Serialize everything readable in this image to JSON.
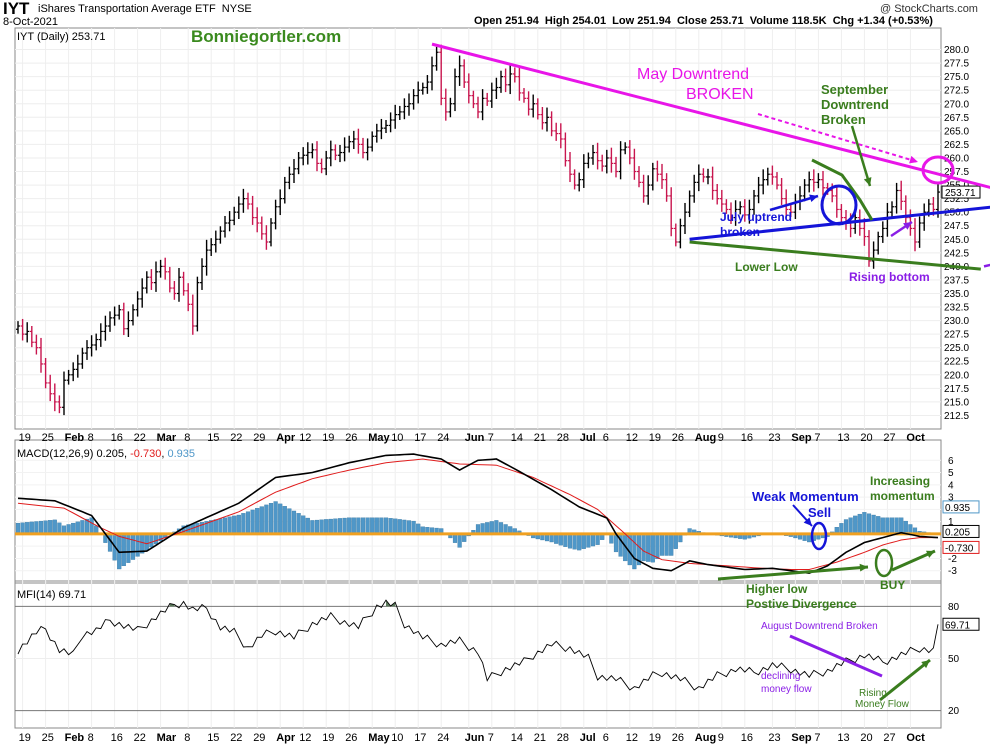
{
  "header": {
    "symbol": "IYT",
    "name": "iShares Transportation Average ETF",
    "exchange": "NYSE",
    "date": "8-Oct-2021",
    "ohlc": "Open 251.94  High 254.01  Low 251.94  Close 253.71  Volume 118.5K  Chg +1.34 (+0.53%)",
    "credit": "@ StockCharts.com",
    "watermark": "Bonniegortler.com"
  },
  "panel_labels": {
    "price": "IYT (Daily) 253.71",
    "macd_prefix": "MACD(12,26,9) 0.205, ",
    "macd_sig": "-0.730",
    "macd_sep": ", ",
    "macd_hist": "0.935",
    "mfi": "MFI(14) 69.71"
  },
  "annotations": {
    "may_line1": "May Downtrend",
    "may_line2": "BROKEN",
    "sept_line1": "September",
    "sept_line2": "Downtrend",
    "sept_line3": "Broken",
    "july_line1": "July uptrend",
    "july_line2": "broken",
    "lower_low": "Lower Low",
    "rising_bottom": "Rising bottom",
    "weak_line1": "Weak Momentum",
    "weak_line2": "Sell",
    "inc_line1": "Increasing",
    "inc_line2": "momentum",
    "higher_line1": "Higher low",
    "higher_line2": "Postive Divergence",
    "buy": "BUY",
    "aug_dt": "August Downtrend Broken",
    "decl_line1": "declining",
    "decl_line2": "money flow",
    "rising_line1": "Rising",
    "rising_line2": "Money Flow"
  },
  "colors": {
    "up_bar": "#000000",
    "down_bar": "#c8154e",
    "magenta": "#e815e8",
    "blue": "#1414d8",
    "green": "#3a7d1e",
    "purple": "#8a1ee6",
    "macd_line": "#000000",
    "signal_line": "#e01c1c",
    "histogram": "#4f97c8",
    "zero_line": "#f0a020",
    "mfi_fill": "#5a7a5a"
  },
  "chart_data": [
    {
      "type": "ohlc",
      "panel": "price",
      "ylim": [
        210,
        282.5
      ],
      "y_ticks": [
        212.5,
        215,
        217.5,
        220,
        222.5,
        225,
        227.5,
        230,
        232.5,
        235,
        237.5,
        240,
        242.5,
        245,
        247.5,
        250,
        252.5,
        255,
        257.5,
        260,
        262.5,
        265,
        267.5,
        270,
        272.5,
        275,
        277.5,
        280
      ],
      "x_tick_labels": [
        "19",
        "25",
        "Feb",
        "8",
        "16",
        "22",
        "Mar",
        "8",
        "15",
        "22",
        "29",
        "Apr",
        "12",
        "19",
        "26",
        "May",
        "10",
        "17",
        "24",
        "Jun",
        "7",
        "14",
        "21",
        "28",
        "Jul",
        "6",
        "12",
        "19",
        "26",
        "Aug",
        "9",
        "16",
        "23",
        "Sep",
        "7",
        "13",
        "20",
        "27",
        "Oct"
      ],
      "last_value": 253.71,
      "trendlines": [
        {
          "name": "May downtrend",
          "from": [
            "May 10",
            281
          ],
          "to": [
            "Oct 8",
            250
          ]
        },
        {
          "name": "July uptrend",
          "from": [
            "Jul 19",
            245
          ],
          "to": [
            "Oct 8",
            252.8
          ]
        },
        {
          "name": "Lower low",
          "from": [
            "Jul 19",
            244.5
          ],
          "to": [
            "Sep 17",
            239.5
          ]
        },
        {
          "name": "Rising bottom",
          "from": [
            "Sep 20",
            240
          ],
          "to": [
            "Oct 4",
            243.5
          ]
        }
      ],
      "closes": [
        229,
        227.5,
        228,
        226,
        225,
        222,
        218.5,
        216.5,
        215,
        214,
        219,
        220,
        221,
        222,
        224,
        225,
        225.5,
        226.5,
        228,
        229,
        230.5,
        231,
        232,
        228.5,
        230,
        232,
        234,
        236,
        238,
        237,
        239,
        240,
        239,
        236,
        235,
        238,
        235.5,
        233,
        229,
        237,
        240,
        243,
        244,
        245,
        246.5,
        248,
        248.5,
        250,
        251.5,
        252.5,
        251.5,
        249,
        248,
        246,
        244.5,
        248,
        251,
        252.5,
        255.5,
        257,
        258,
        260,
        260.5,
        261,
        261.5,
        259,
        258,
        260,
        261.5,
        260.5,
        261,
        262,
        263,
        263.5,
        262.5,
        261,
        262,
        264,
        265,
        265.5,
        266,
        267,
        268,
        268.5,
        269.5,
        270,
        271.5,
        272.5,
        273,
        274,
        277,
        279.5,
        271,
        268.5,
        270,
        275,
        277,
        274,
        271.5,
        270,
        268.5,
        271,
        270.5,
        272.5,
        273,
        275,
        273.5,
        275.5,
        275,
        272,
        271,
        269,
        270,
        268,
        266.5,
        267.5,
        265,
        264.5,
        263.5,
        259.5,
        257,
        255,
        256,
        259,
        260,
        261,
        259.5,
        258.5,
        260,
        259,
        257.5,
        261.5,
        262,
        260,
        257.5,
        255.5,
        253,
        255,
        258,
        257,
        256,
        253,
        247,
        244.5,
        247.5,
        250,
        253,
        255.5,
        257,
        256.5,
        256.5,
        254,
        252.5,
        251.5,
        250.5,
        249,
        250.5,
        251,
        249.5,
        250.5,
        253,
        255,
        256,
        257,
        256.5,
        255,
        252.5,
        250.5,
        250,
        252,
        253,
        255,
        256,
        255.5,
        256,
        254.5,
        254,
        253,
        250.5,
        249,
        248,
        247,
        249,
        247,
        245.5,
        241,
        243,
        245.5,
        247,
        250,
        251,
        254,
        252,
        249,
        247,
        244.5,
        248,
        250,
        251.5,
        250.5,
        253.71
      ]
    },
    {
      "type": "line",
      "panel": "macd",
      "ylim": [
        -4,
        7
      ],
      "y_ticks": [
        -3,
        -2,
        -1,
        0,
        1,
        2,
        3,
        4,
        5,
        6
      ],
      "series": [
        {
          "name": "MACD(12,26,9)",
          "last": 0.205
        },
        {
          "name": "signal",
          "last": -0.73
        },
        {
          "name": "histogram",
          "last": 0.935
        }
      ],
      "macd_keys": [
        [
          0,
          2.9
        ],
        [
          8,
          2.7
        ],
        [
          16,
          1.5
        ],
        [
          22,
          -1.5
        ],
        [
          28,
          -1.4
        ],
        [
          36,
          0.5
        ],
        [
          48,
          2.5
        ],
        [
          56,
          4.6
        ],
        [
          64,
          5
        ],
        [
          72,
          5.8
        ],
        [
          80,
          6.4
        ],
        [
          86,
          6.5
        ],
        [
          92,
          6.1
        ],
        [
          96,
          5.2
        ],
        [
          100,
          6
        ],
        [
          104,
          6.1
        ],
        [
          108,
          5.3
        ],
        [
          116,
          3.6
        ],
        [
          122,
          2.2
        ],
        [
          128,
          1.3
        ],
        [
          130,
          0
        ],
        [
          134,
          -2
        ],
        [
          138,
          -2.8
        ],
        [
          142,
          -3
        ],
        [
          146,
          -2.2
        ],
        [
          150,
          -2.5
        ],
        [
          158,
          -2.9
        ],
        [
          164,
          -2.8
        ],
        [
          172,
          -3.2
        ],
        [
          176,
          -2.6
        ],
        [
          180,
          -1.5
        ],
        [
          184,
          -0.7
        ],
        [
          188,
          -0.3
        ],
        [
          192,
          0.1
        ],
        [
          196,
          -0.2
        ],
        [
          200,
          -0.3
        ],
        [
          204,
          -1.4
        ],
        [
          208,
          -2.2
        ],
        [
          212,
          -3
        ],
        [
          216,
          -2.6
        ],
        [
          220,
          -2.2
        ],
        [
          224,
          -1.8
        ],
        [
          228,
          -1.2
        ],
        [
          231,
          0.205
        ]
      ],
      "signal_keys": [
        [
          0,
          2.5
        ],
        [
          10,
          2.1
        ],
        [
          18,
          0.5
        ],
        [
          22,
          -0.2
        ],
        [
          28,
          -0.8
        ],
        [
          36,
          0.2
        ],
        [
          48,
          1.8
        ],
        [
          56,
          3.4
        ],
        [
          64,
          4.5
        ],
        [
          72,
          5.2
        ],
        [
          80,
          5.8
        ],
        [
          88,
          6.1
        ],
        [
          96,
          5.7
        ],
        [
          104,
          5.6
        ],
        [
          112,
          4.6
        ],
        [
          120,
          3.2
        ],
        [
          126,
          2
        ],
        [
          132,
          0
        ],
        [
          136,
          -1.4
        ],
        [
          140,
          -2.1
        ],
        [
          146,
          -2.4
        ],
        [
          154,
          -2.6
        ],
        [
          162,
          -2.8
        ],
        [
          168,
          -2.9
        ],
        [
          172,
          -2.9
        ],
        [
          178,
          -2.3
        ],
        [
          184,
          -1.5
        ],
        [
          188,
          -0.9
        ],
        [
          192,
          -0.5
        ],
        [
          196,
          -0.3
        ],
        [
          200,
          -0.3
        ],
        [
          204,
          -0.8
        ],
        [
          208,
          -1.3
        ],
        [
          212,
          -1.9
        ],
        [
          216,
          -2.4
        ],
        [
          220,
          -2.3
        ],
        [
          224,
          -2
        ],
        [
          228,
          -1.4
        ],
        [
          231,
          -0.73
        ]
      ]
    },
    {
      "type": "line",
      "panel": "mfi",
      "ylim": [
        10,
        90
      ],
      "y_ticks": [
        20,
        50,
        80
      ],
      "last_value": 69.71,
      "mfi_keys": [
        [
          0,
          55
        ],
        [
          4,
          65
        ],
        [
          6,
          67
        ],
        [
          9,
          55
        ],
        [
          12,
          52
        ],
        [
          14,
          64
        ],
        [
          17,
          66
        ],
        [
          20,
          72
        ],
        [
          22,
          70
        ],
        [
          26,
          66
        ],
        [
          30,
          74
        ],
        [
          34,
          81
        ],
        [
          36,
          82
        ],
        [
          38,
          78
        ],
        [
          41,
          79
        ],
        [
          44,
          68
        ],
        [
          47,
          65
        ],
        [
          50,
          56
        ],
        [
          53,
          63
        ],
        [
          56,
          66
        ],
        [
          60,
          62
        ],
        [
          64,
          70
        ],
        [
          68,
          74
        ],
        [
          70,
          72
        ],
        [
          74,
          68
        ],
        [
          78,
          80
        ],
        [
          80,
          82
        ],
        [
          82,
          80
        ],
        [
          84,
          70
        ],
        [
          88,
          62
        ],
        [
          92,
          58
        ],
        [
          96,
          60
        ],
        [
          100,
          54
        ],
        [
          102,
          38
        ],
        [
          106,
          44
        ],
        [
          110,
          48
        ],
        [
          112,
          52
        ],
        [
          116,
          58
        ],
        [
          120,
          56
        ],
        [
          124,
          50
        ],
        [
          126,
          40
        ],
        [
          130,
          38
        ],
        [
          134,
          33
        ],
        [
          138,
          40
        ],
        [
          140,
          42
        ],
        [
          144,
          38
        ],
        [
          148,
          33
        ],
        [
          152,
          40
        ],
        [
          156,
          44
        ],
        [
          160,
          42
        ],
        [
          164,
          46
        ],
        [
          168,
          44
        ],
        [
          172,
          40
        ],
        [
          176,
          43
        ],
        [
          180,
          48
        ],
        [
          184,
          52
        ],
        [
          188,
          48
        ],
        [
          192,
          52
        ],
        [
          196,
          56
        ],
        [
          200,
          54
        ],
        [
          204,
          50
        ],
        [
          208,
          44
        ],
        [
          212,
          40
        ],
        [
          214,
          36
        ],
        [
          216,
          35
        ],
        [
          218,
          40
        ],
        [
          220,
          42
        ],
        [
          222,
          46
        ],
        [
          224,
          48
        ],
        [
          226,
          48
        ],
        [
          228,
          55
        ],
        [
          229,
          62
        ],
        [
          230,
          68
        ],
        [
          231,
          69.71
        ]
      ]
    }
  ]
}
